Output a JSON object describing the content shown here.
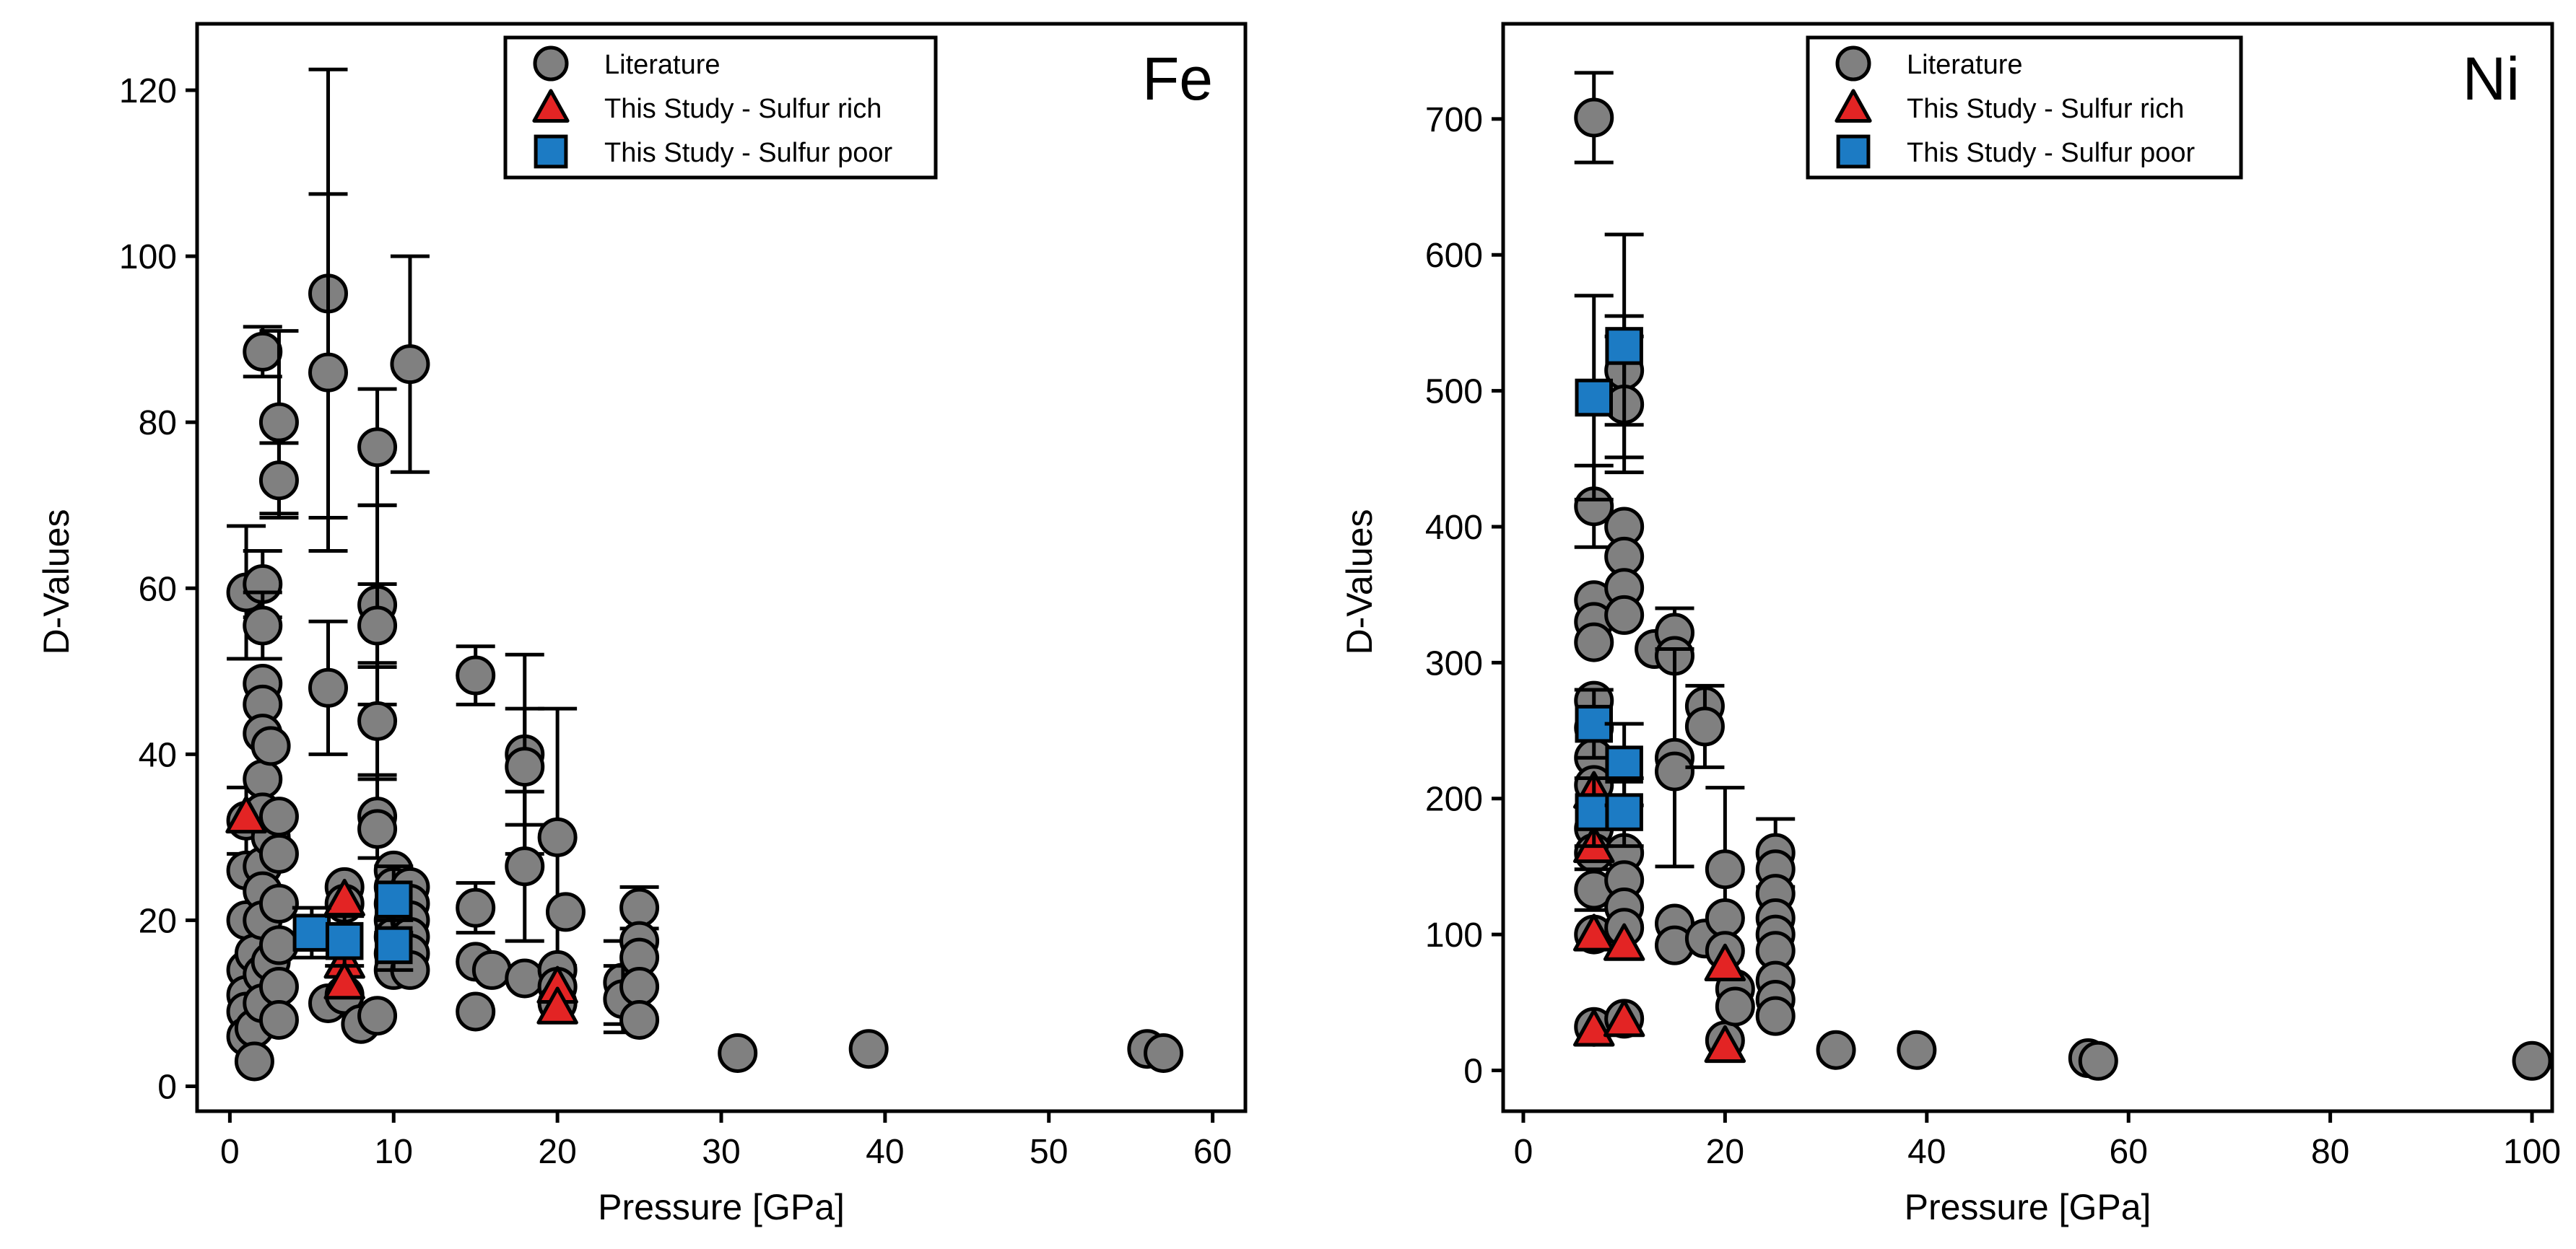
{
  "chart_data": [
    {
      "type": "scatter",
      "panel_label": "Fe",
      "xlabel": "Pressure [GPa]",
      "ylabel": "D-Values",
      "xlim": [
        -2,
        62
      ],
      "ylim": [
        -3,
        128
      ],
      "xticks": [
        0,
        10,
        20,
        30,
        40,
        50,
        60
      ],
      "yticks": [
        0,
        20,
        40,
        60,
        80,
        100,
        120
      ],
      "legend_position": "top-center",
      "series": [
        {
          "name": "Literature",
          "marker": "circle",
          "color": "#808080",
          "points": [
            {
              "x": 1,
              "y": 59.5,
              "err": 8
            },
            {
              "x": 1,
              "y": 32,
              "err": 4
            },
            {
              "x": 1,
              "y": 26
            },
            {
              "x": 1,
              "y": 20
            },
            {
              "x": 1,
              "y": 14
            },
            {
              "x": 1,
              "y": 11
            },
            {
              "x": 1,
              "y": 9
            },
            {
              "x": 1,
              "y": 6
            },
            {
              "x": 1.5,
              "y": 7
            },
            {
              "x": 1.5,
              "y": 3
            },
            {
              "x": 1.5,
              "y": 16
            },
            {
              "x": 2,
              "y": 88.5,
              "err": 3
            },
            {
              "x": 2,
              "y": 60.5,
              "err": 4
            },
            {
              "x": 2,
              "y": 55.5,
              "err": 4
            },
            {
              "x": 2,
              "y": 48.5
            },
            {
              "x": 2,
              "y": 46
            },
            {
              "x": 2,
              "y": 42.5
            },
            {
              "x": 2,
              "y": 37
            },
            {
              "x": 2,
              "y": 33
            },
            {
              "x": 2,
              "y": 26.5
            },
            {
              "x": 2,
              "y": 23.5
            },
            {
              "x": 2,
              "y": 20
            },
            {
              "x": 2,
              "y": 13.5
            },
            {
              "x": 2,
              "y": 10
            },
            {
              "x": 2.5,
              "y": 41
            },
            {
              "x": 2.5,
              "y": 30
            },
            {
              "x": 2.5,
              "y": 15
            },
            {
              "x": 3,
              "y": 80,
              "err": 11
            },
            {
              "x": 3,
              "y": 73,
              "err": 4.5
            },
            {
              "x": 3,
              "y": 32.5
            },
            {
              "x": 3,
              "y": 28
            },
            {
              "x": 3,
              "y": 22
            },
            {
              "x": 3,
              "y": 17
            },
            {
              "x": 3,
              "y": 12
            },
            {
              "x": 3,
              "y": 8
            },
            {
              "x": 6,
              "y": 95.5,
              "err": 27
            },
            {
              "x": 6,
              "y": 86,
              "err": 21.5
            },
            {
              "x": 6,
              "y": 48,
              "err": 8
            },
            {
              "x": 6,
              "y": 10
            },
            {
              "x": 7,
              "y": 24
            },
            {
              "x": 7,
              "y": 22
            },
            {
              "x": 7,
              "y": 11
            },
            {
              "x": 8,
              "y": 7.5
            },
            {
              "x": 9,
              "y": 77,
              "err": 7
            },
            {
              "x": 9,
              "y": 58,
              "err": 12
            },
            {
              "x": 9,
              "y": 55.5,
              "err": 5
            },
            {
              "x": 9,
              "y": 44,
              "err": 7
            },
            {
              "x": 9,
              "y": 32.5,
              "err": 5
            },
            {
              "x": 9,
              "y": 31
            },
            {
              "x": 9,
              "y": 8.5
            },
            {
              "x": 10,
              "y": 26
            },
            {
              "x": 10,
              "y": 24
            },
            {
              "x": 10,
              "y": 22
            },
            {
              "x": 10,
              "y": 20
            },
            {
              "x": 10,
              "y": 18
            },
            {
              "x": 10,
              "y": 16
            },
            {
              "x": 10,
              "y": 14
            },
            {
              "x": 11,
              "y": 87,
              "err": 13
            },
            {
              "x": 11,
              "y": 24
            },
            {
              "x": 11,
              "y": 22
            },
            {
              "x": 11,
              "y": 20
            },
            {
              "x": 11,
              "y": 18
            },
            {
              "x": 11,
              "y": 16
            },
            {
              "x": 11,
              "y": 14
            },
            {
              "x": 15,
              "y": 49.5,
              "err": 3.5
            },
            {
              "x": 15,
              "y": 21.5,
              "err": 3
            },
            {
              "x": 15,
              "y": 15
            },
            {
              "x": 15,
              "y": 9
            },
            {
              "x": 16,
              "y": 14
            },
            {
              "x": 18,
              "y": 40,
              "err": 12
            },
            {
              "x": 18,
              "y": 38.5,
              "err": 7
            },
            {
              "x": 18,
              "y": 26.5,
              "err": 9
            },
            {
              "x": 18,
              "y": 13
            },
            {
              "x": 20,
              "y": 30,
              "err": 15.5
            },
            {
              "x": 20,
              "y": 14
            },
            {
              "x": 20,
              "y": 12
            },
            {
              "x": 20,
              "y": 10
            },
            {
              "x": 20.5,
              "y": 21
            },
            {
              "x": 24,
              "y": 12.5,
              "err": 5
            },
            {
              "x": 24,
              "y": 10.5,
              "err": 4
            },
            {
              "x": 25,
              "y": 21.5,
              "err": 2.5
            },
            {
              "x": 25,
              "y": 17.5
            },
            {
              "x": 25,
              "y": 15.5
            },
            {
              "x": 25,
              "y": 12
            },
            {
              "x": 25,
              "y": 8
            },
            {
              "x": 31,
              "y": 4
            },
            {
              "x": 39,
              "y": 4.5
            },
            {
              "x": 56,
              "y": 4.5
            },
            {
              "x": 57,
              "y": 4
            }
          ]
        },
        {
          "name": "This Study - Sulfur rich",
          "marker": "triangle",
          "color": "#e32424",
          "points": [
            {
              "x": 1,
              "y": 32.5
            },
            {
              "x": 7,
              "y": 22.5
            },
            {
              "x": 7,
              "y": 15
            },
            {
              "x": 7,
              "y": 12.5
            },
            {
              "x": 20,
              "y": 12
            },
            {
              "x": 20,
              "y": 9.5
            }
          ]
        },
        {
          "name": "This Study - Sulfur poor",
          "marker": "square",
          "color": "#1c7bc4",
          "points": [
            {
              "x": 5,
              "y": 18.5,
              "err": 3
            },
            {
              "x": 7,
              "y": 17.5,
              "err": 3
            },
            {
              "x": 10,
              "y": 22.5,
              "err": 4
            },
            {
              "x": 10,
              "y": 17,
              "err": 3
            }
          ]
        }
      ]
    },
    {
      "type": "scatter",
      "panel_label": "Ni",
      "xlabel": "Pressure [GPa]",
      "ylabel": "D-Values",
      "xlim": [
        -2,
        102
      ],
      "ylim": [
        -30,
        770
      ],
      "xticks": [
        0,
        20,
        40,
        60,
        80,
        100
      ],
      "yticks": [
        0,
        100,
        200,
        300,
        400,
        500,
        600,
        700
      ],
      "legend_position": "top-center",
      "series": [
        {
          "name": "Literature",
          "marker": "circle",
          "color": "#808080",
          "points": [
            {
              "x": 7,
              "y": 701,
              "err": 33
            },
            {
              "x": 7,
              "y": 415,
              "err": 30
            },
            {
              "x": 7,
              "y": 346
            },
            {
              "x": 7,
              "y": 330
            },
            {
              "x": 7,
              "y": 315
            },
            {
              "x": 7,
              "y": 272
            },
            {
              "x": 7,
              "y": 252
            },
            {
              "x": 7,
              "y": 230
            },
            {
              "x": 7,
              "y": 210
            },
            {
              "x": 7,
              "y": 178
            },
            {
              "x": 7,
              "y": 160
            },
            {
              "x": 7,
              "y": 133,
              "err": 15
            },
            {
              "x": 7,
              "y": 100
            },
            {
              "x": 7,
              "y": 32
            },
            {
              "x": 10,
              "y": 515,
              "err": 40
            },
            {
              "x": 10,
              "y": 490,
              "err": 50
            },
            {
              "x": 10,
              "y": 400
            },
            {
              "x": 10,
              "y": 378
            },
            {
              "x": 10,
              "y": 355
            },
            {
              "x": 10,
              "y": 335
            },
            {
              "x": 10,
              "y": 160
            },
            {
              "x": 10,
              "y": 140
            },
            {
              "x": 10,
              "y": 120
            },
            {
              "x": 10,
              "y": 105
            },
            {
              "x": 10,
              "y": 38
            },
            {
              "x": 13,
              "y": 310
            },
            {
              "x": 15,
              "y": 322,
              "err": 18
            },
            {
              "x": 15,
              "y": 305
            },
            {
              "x": 15,
              "y": 230,
              "err": 80
            },
            {
              "x": 15,
              "y": 220
            },
            {
              "x": 15,
              "y": 108
            },
            {
              "x": 15,
              "y": 92
            },
            {
              "x": 18,
              "y": 268
            },
            {
              "x": 18,
              "y": 253,
              "err": 30
            },
            {
              "x": 18,
              "y": 97
            },
            {
              "x": 20,
              "y": 148,
              "err": 60
            },
            {
              "x": 20,
              "y": 112
            },
            {
              "x": 20,
              "y": 88
            },
            {
              "x": 20,
              "y": 22
            },
            {
              "x": 21,
              "y": 60
            },
            {
              "x": 21,
              "y": 47
            },
            {
              "x": 25,
              "y": 160,
              "err": 25
            },
            {
              "x": 25,
              "y": 148
            },
            {
              "x": 25,
              "y": 130
            },
            {
              "x": 25,
              "y": 112
            },
            {
              "x": 25,
              "y": 100
            },
            {
              "x": 25,
              "y": 88
            },
            {
              "x": 25,
              "y": 66
            },
            {
              "x": 25,
              "y": 52
            },
            {
              "x": 25,
              "y": 40
            },
            {
              "x": 31,
              "y": 15
            },
            {
              "x": 39,
              "y": 15
            },
            {
              "x": 56,
              "y": 9
            },
            {
              "x": 57,
              "y": 7
            },
            {
              "x": 100,
              "y": 7
            }
          ]
        },
        {
          "name": "This Study - Sulfur rich",
          "marker": "triangle",
          "color": "#e32424",
          "points": [
            {
              "x": 7,
              "y": 205
            },
            {
              "x": 7,
              "y": 165
            },
            {
              "x": 7,
              "y": 100
            },
            {
              "x": 7,
              "y": 30
            },
            {
              "x": 10,
              "y": 93
            },
            {
              "x": 10,
              "y": 37
            },
            {
              "x": 20,
              "y": 78
            },
            {
              "x": 20,
              "y": 18
            }
          ]
        },
        {
          "name": "This Study - Sulfur poor",
          "marker": "square",
          "color": "#1c7bc4",
          "points": [
            {
              "x": 7,
              "y": 495,
              "err": 75
            },
            {
              "x": 7,
              "y": 255,
              "err": 25
            },
            {
              "x": 7,
              "y": 190,
              "err": 25
            },
            {
              "x": 10,
              "y": 533,
              "err": 82
            },
            {
              "x": 10,
              "y": 225,
              "err": 30
            },
            {
              "x": 10,
              "y": 190,
              "err": 25
            }
          ]
        }
      ]
    }
  ]
}
